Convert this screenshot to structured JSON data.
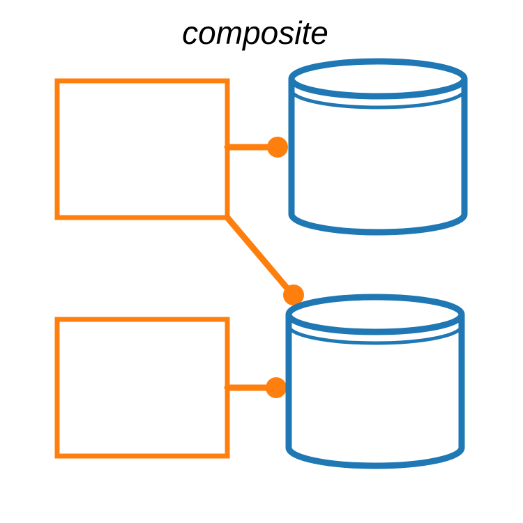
{
  "title": "composite",
  "colors": {
    "orange": "#ff7f0e",
    "blue": "#1f77b4",
    "text": "#000000",
    "background": "#ffffff"
  },
  "components": [
    {
      "id": "box-1",
      "shape": "rectangle",
      "color": "orange"
    },
    {
      "id": "box-2",
      "shape": "rectangle",
      "color": "orange"
    },
    {
      "id": "db-1",
      "shape": "cylinder",
      "color": "blue"
    },
    {
      "id": "db-2",
      "shape": "cylinder",
      "color": "blue"
    }
  ],
  "connections": [
    {
      "from": "box-1",
      "to": "db-1"
    },
    {
      "from": "box-1",
      "to": "db-2"
    },
    {
      "from": "box-2",
      "to": "db-2"
    }
  ]
}
